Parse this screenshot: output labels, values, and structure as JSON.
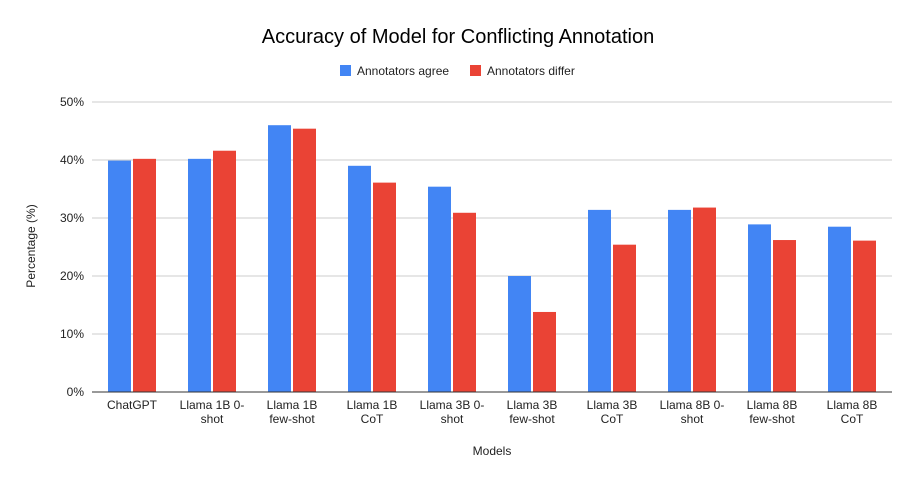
{
  "chart_data": {
    "type": "bar",
    "title": "Accuracy of Model for Conflicting Annotation",
    "xlabel": "Models",
    "ylabel": "Percentage (%)",
    "ylim": [
      0,
      50
    ],
    "yticks": [
      "0%",
      "10%",
      "20%",
      "30%",
      "40%",
      "50%"
    ],
    "ytick_values": [
      0,
      10,
      20,
      30,
      40,
      50
    ],
    "legend_position": "top",
    "grid": true,
    "categories": [
      [
        "ChatGPT"
      ],
      [
        "Llama 1B 0-",
        "shot"
      ],
      [
        "Llama 1B",
        "few-shot"
      ],
      [
        "Llama 1B",
        "CoT"
      ],
      [
        "Llama 3B 0-",
        "shot"
      ],
      [
        "Llama 3B",
        "few-shot"
      ],
      [
        "Llama 3B",
        "CoT"
      ],
      [
        "Llama 8B 0-",
        "shot"
      ],
      [
        "Llama 8B",
        "few-shot"
      ],
      [
        "Llama 8B",
        "CoT"
      ]
    ],
    "series": [
      {
        "name": "Annotators agree",
        "color": "#4285f4",
        "values": [
          39.9,
          40.2,
          46.0,
          39.0,
          35.4,
          20.0,
          31.4,
          31.4,
          28.9,
          28.5
        ]
      },
      {
        "name": "Annotators differ",
        "color": "#ea4335",
        "values": [
          40.2,
          41.6,
          45.4,
          36.1,
          30.9,
          13.8,
          25.4,
          31.8,
          26.2,
          26.1
        ]
      }
    ]
  }
}
